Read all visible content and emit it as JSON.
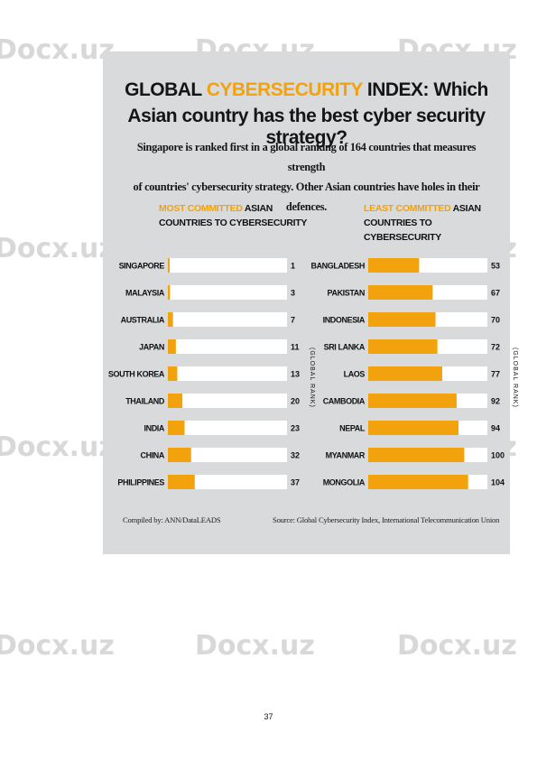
{
  "watermark": "Docx.uz",
  "page_number": "37",
  "colors": {
    "accent": "#f2a20c",
    "panel": "#d9dadb",
    "bar_track": "#ffffff"
  },
  "title": {
    "line1_pre": "GLOBAL ",
    "line1_accent": "CYBERSECURITY",
    "line1_post": " INDEX: Which",
    "line2": "Asian country has the best cyber security strategy?"
  },
  "subtitle": {
    "line1": "Singapore is ranked first in a global ranking of 164 countries that measures strength",
    "line2": "of countries' cybersecurity strategy. Other Asian countries have holes in their defences."
  },
  "footer": {
    "compiled": "Compiled by: ANN/DataLEADS",
    "source": "Source: Global Cybersecurity Index, International Telecommunication Union"
  },
  "chart_data": [
    {
      "type": "bar",
      "orientation": "horizontal",
      "heading_accent": "MOST COMMITTED",
      "heading_rest": " ASIAN",
      "heading_line2": "COUNTRIES TO CYBERSECURITY",
      "axis_label": "(GLOBAL RANK)",
      "categories": [
        "SINGAPORE",
        "MALAYSIA",
        "AUSTRALIA",
        "JAPAN",
        "SOUTH KOREA",
        "THAILAND",
        "INDIA",
        "CHINA",
        "PHILIPPINES"
      ],
      "values": [
        1,
        3,
        7,
        11,
        13,
        20,
        23,
        32,
        37
      ],
      "xlim": [
        0,
        164
      ],
      "grid": false
    },
    {
      "type": "bar",
      "orientation": "horizontal",
      "heading_accent": "LEAST COMMITTED",
      "heading_rest": " ASIAN",
      "heading_line2": "COUNTRIES TO CYBERSECURITY",
      "axis_label": "(GLOBAL RANK)",
      "categories": [
        "BANGLADESH",
        "PAKISTAN",
        "INDONESIA",
        "SRI LANKA",
        "LAOS",
        "CAMBODIA",
        "NEPAL",
        "MYANMAR",
        "MONGOLIA"
      ],
      "values": [
        53,
        67,
        70,
        72,
        77,
        92,
        94,
        100,
        104
      ],
      "xlim": [
        0,
        124
      ],
      "grid": false
    }
  ]
}
